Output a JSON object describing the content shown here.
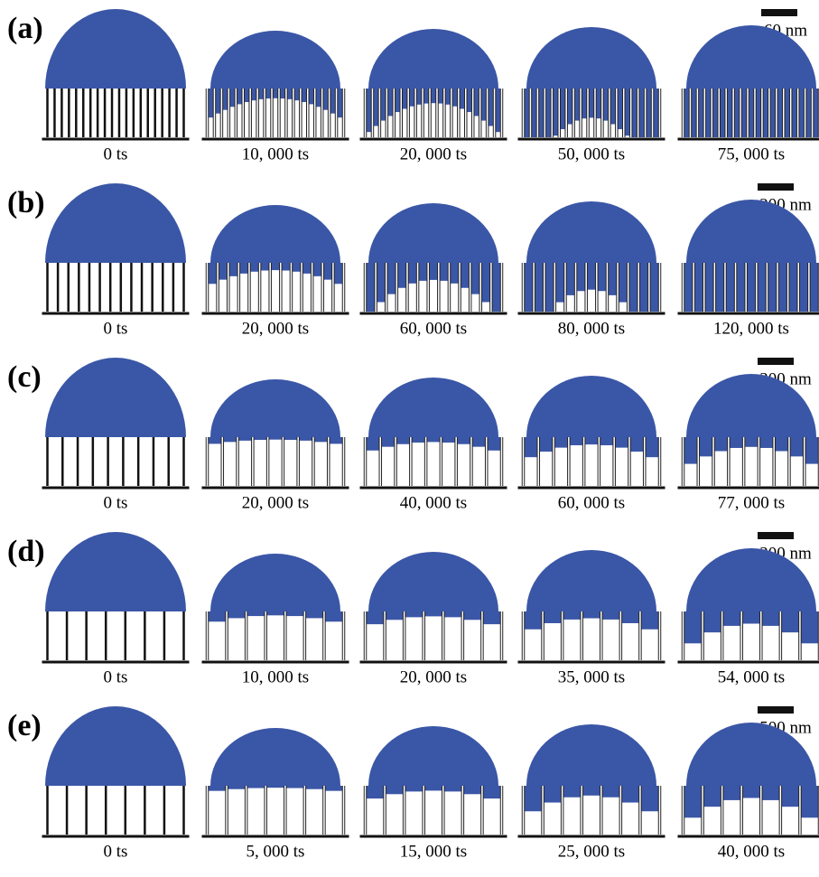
{
  "rows": [
    {
      "label": "(a)",
      "scale": "60 nm",
      "frames": [
        "0 ts",
        "10, 000 ts",
        "20, 000 ts",
        "50, 000 ts",
        "75, 000 ts"
      ]
    },
    {
      "label": "(b)",
      "scale": "200 nm",
      "frames": [
        "0 ts",
        "20, 000 ts",
        "60, 000 ts",
        "80, 000 ts",
        "120, 000 ts"
      ]
    },
    {
      "label": "(c)",
      "scale": "300 nm",
      "frames": [
        "0 ts",
        "20, 000 ts",
        "40, 000 ts",
        "60, 000 ts",
        "77, 000 ts"
      ]
    },
    {
      "label": "(d)",
      "scale": "300 nm",
      "frames": [
        "0 ts",
        "10, 000 ts",
        "20, 000 ts",
        "35, 000 ts",
        "54, 000 ts"
      ]
    },
    {
      "label": "(e)",
      "scale": "500 nm",
      "frames": [
        "0 ts",
        "5, 000 ts",
        "15, 000 ts",
        "25, 000 ts",
        "40, 000 ts"
      ]
    }
  ]
}
